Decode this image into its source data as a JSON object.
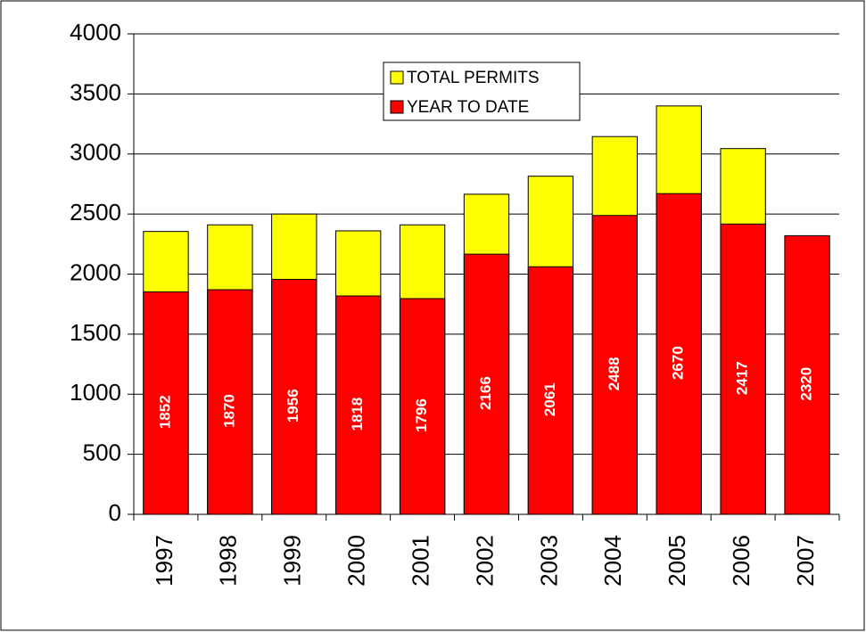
{
  "chart_data": {
    "type": "bar",
    "categories": [
      "1997",
      "1998",
      "1999",
      "2000",
      "2001",
      "2002",
      "2003",
      "2004",
      "2005",
      "2006",
      "2007"
    ],
    "series": [
      {
        "name": "TOTAL PERMITS",
        "color": "#ffff00",
        "values": [
          2355,
          2410,
          2500,
          2360,
          2410,
          2665,
          2815,
          3145,
          3400,
          3045,
          null
        ]
      },
      {
        "name": "YEAR TO DATE",
        "color": "#ff0000",
        "values": [
          1852,
          1870,
          1956,
          1818,
          1796,
          2166,
          2061,
          2488,
          2670,
          2417,
          2320
        ]
      }
    ],
    "ylim": [
      0,
      4000
    ],
    "yticks": [
      0,
      500,
      1000,
      1500,
      2000,
      2500,
      3000,
      3500,
      4000
    ],
    "grid": true,
    "legend": "top"
  }
}
